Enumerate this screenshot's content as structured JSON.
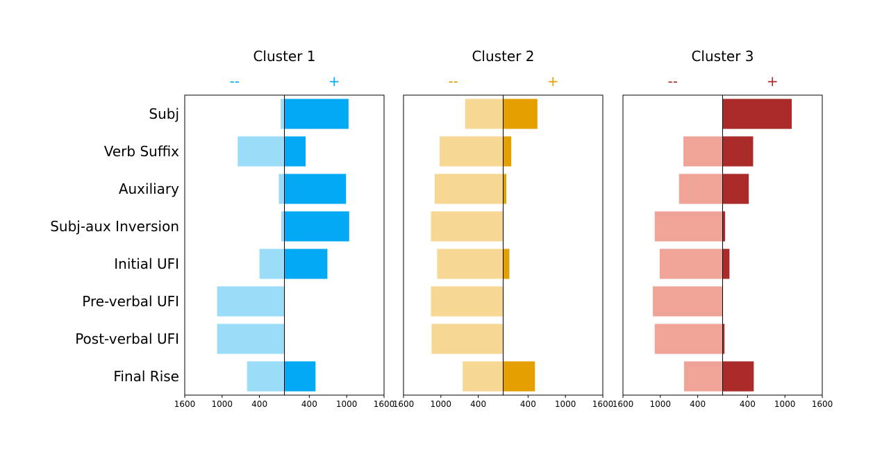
{
  "chart_data": {
    "type": "bar",
    "orientation": "diverging-horizontal",
    "categories": [
      "Subj",
      "Verb Suffix",
      "Auxiliary",
      "Subj-aux Inversion",
      "Initial UFI",
      "Pre-verbal UFI",
      "Post-verbal UFI",
      "Final Rise"
    ],
    "xlim": [
      -1600,
      1600
    ],
    "x_ticks": [
      -1600,
      -1000,
      -400,
      400,
      1000,
      1600
    ],
    "x_tick_labels": [
      "1600",
      "1000",
      "400",
      "400",
      "1000",
      "1600"
    ],
    "clusters": [
      {
        "title": "Cluster 1",
        "neg_label": "--",
        "pos_label": "+",
        "neg_color": "#9bddf9",
        "pos_color": "#03a9f4",
        "sign_color": "#03a9f4",
        "neg_values": [
          60,
          750,
          90,
          50,
          400,
          1080,
          1080,
          600
        ],
        "pos_values": [
          1030,
          340,
          990,
          1040,
          690,
          0,
          0,
          500
        ]
      },
      {
        "title": "Cluster 2",
        "neg_label": "--",
        "pos_label": "+",
        "neg_color": "#f7d794",
        "pos_color": "#e3a000",
        "sign_color": "#e3a000",
        "neg_values": [
          610,
          1020,
          1100,
          1160,
          1060,
          1160,
          1150,
          650
        ],
        "pos_values": [
          550,
          130,
          50,
          0,
          100,
          0,
          0,
          510
        ]
      },
      {
        "title": "Cluster 3",
        "neg_label": "--",
        "pos_label": "+",
        "neg_color": "#f0a498",
        "pos_color": "#ab2a2a",
        "sign_color": "#ab2a2a",
        "neg_values": [
          0,
          630,
          700,
          1090,
          1010,
          1120,
          1090,
          620
        ],
        "pos_values": [
          1110,
          490,
          420,
          40,
          110,
          0,
          30,
          500
        ]
      }
    ]
  }
}
